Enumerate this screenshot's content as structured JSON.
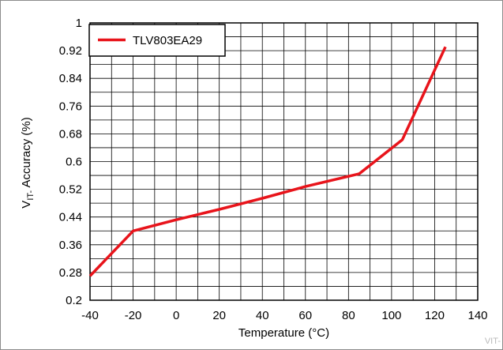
{
  "chart_data": {
    "type": "line",
    "title": "",
    "xlabel": "Temperature (°C)",
    "ylabel_main": "V",
    "ylabel_sub": "IT-",
    "ylabel_rest": " Accuracy (%)",
    "xlim": [
      -40,
      140
    ],
    "ylim": [
      0.2,
      1.0
    ],
    "x_ticks": [
      -40,
      -20,
      0,
      20,
      40,
      60,
      80,
      100,
      120,
      140
    ],
    "y_ticks": [
      0.2,
      0.28,
      0.36,
      0.44,
      0.52,
      0.6,
      0.68,
      0.76,
      0.84,
      0.92,
      1.0
    ],
    "y_tick_labels": [
      "0.2",
      "0.28",
      "0.36",
      "0.44",
      "0.52",
      "0.6",
      "0.68",
      "0.76",
      "0.84",
      "0.92",
      "1"
    ],
    "x_minor_step": 10,
    "y_minor_step": 0.04,
    "grid": true,
    "legend": "top-left",
    "series": [
      {
        "name": "TLV803EA29",
        "color": "#e8141b",
        "x": [
          -40,
          -20,
          0,
          20,
          40,
          60,
          85,
          105,
          125
        ],
        "y": [
          0.27,
          0.4,
          0.432,
          0.462,
          0.494,
          0.528,
          0.565,
          0.663,
          0.931
        ]
      }
    ]
  },
  "watermark": "VIT-"
}
